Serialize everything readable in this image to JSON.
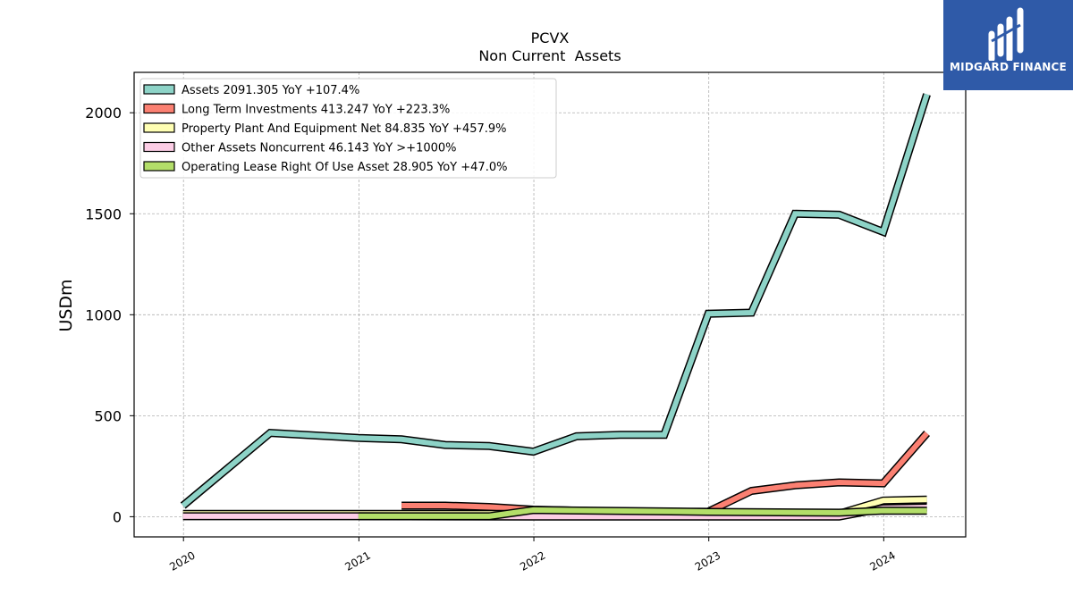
{
  "brand": {
    "name": "MIDGARD FINANCE",
    "bg_color": "#2f5aa8"
  },
  "chart_data": {
    "type": "line",
    "title": "PCVX",
    "subtitle": "Non Current  Assets",
    "ylabel": "USDm",
    "xlabel": "",
    "x_ticks": [
      "2020",
      "2021",
      "2022",
      "2023",
      "2024"
    ],
    "y_ticks": [
      0,
      500,
      1000,
      1500,
      2000
    ],
    "ylim": [
      -100,
      2200
    ],
    "xlim": [
      "2019-09-20",
      "2024-06-20"
    ],
    "grid": true,
    "legend_position": "top-left",
    "series": [
      {
        "name": "Assets",
        "legend": "Assets  2091.305 YoY +107.4%",
        "color": "#8dd3c7",
        "points": [
          [
            "2019-12-31",
            55
          ],
          [
            "2020-06-30",
            415
          ],
          [
            "2020-12-31",
            390
          ],
          [
            "2021-03-31",
            383
          ],
          [
            "2021-06-30",
            355
          ],
          [
            "2021-09-30",
            350
          ],
          [
            "2021-12-31",
            322
          ],
          [
            "2022-03-31",
            398
          ],
          [
            "2022-06-30",
            405
          ],
          [
            "2022-09-30",
            405
          ],
          [
            "2022-12-31",
            1005
          ],
          [
            "2023-03-31",
            1010
          ],
          [
            "2023-06-30",
            1500
          ],
          [
            "2023-09-30",
            1495
          ],
          [
            "2023-12-31",
            1410
          ],
          [
            "2024-03-31",
            2091
          ]
        ]
      },
      {
        "name": "Long Term Investments",
        "legend": "Long Term Investments  413.247 YoY +223.3%",
        "color": "#fb8072",
        "points": [
          [
            "2021-03-31",
            55
          ],
          [
            "2021-06-30",
            55
          ],
          [
            "2021-09-30",
            48
          ],
          [
            "2021-12-31",
            35
          ],
          [
            "2022-03-31",
            30
          ],
          [
            "2022-06-30",
            25
          ],
          [
            "2022-09-30",
            22
          ],
          [
            "2022-12-31",
            25
          ],
          [
            "2023-03-31",
            128
          ],
          [
            "2023-06-30",
            155
          ],
          [
            "2023-09-30",
            170
          ],
          [
            "2023-12-31",
            165
          ],
          [
            "2024-03-31",
            413
          ]
        ]
      },
      {
        "name": "Property Plant And Equipment Net",
        "legend": "Property Plant And Equipment Net  84.835 YoY +457.9%",
        "color": "#ffffb3",
        "points": [
          [
            "2019-12-31",
            14
          ],
          [
            "2020-12-31",
            14
          ],
          [
            "2021-12-31",
            14
          ],
          [
            "2022-12-31",
            14
          ],
          [
            "2023-09-30",
            15
          ],
          [
            "2023-12-31",
            80
          ],
          [
            "2024-03-31",
            85
          ]
        ]
      },
      {
        "name": "Other Assets Noncurrent",
        "legend": "Other Assets Noncurrent  46.143 YoY >+1000%",
        "color": "#fccde5",
        "points": [
          [
            "2019-12-31",
            2
          ],
          [
            "2020-12-31",
            2
          ],
          [
            "2021-12-31",
            1
          ],
          [
            "2022-12-31",
            1
          ],
          [
            "2023-09-30",
            1
          ],
          [
            "2023-12-31",
            42
          ],
          [
            "2024-03-31",
            46
          ]
        ]
      },
      {
        "name": "Operating Lease Right Of Use Asset",
        "legend": "Operating Lease Right Of Use Asset  28.905 YoY +47.0%",
        "color": "#b3de69",
        "points": [
          [
            "2020-12-31",
            2
          ],
          [
            "2021-09-30",
            2
          ],
          [
            "2021-12-31",
            33
          ],
          [
            "2022-12-31",
            24
          ],
          [
            "2023-09-30",
            20
          ],
          [
            "2023-12-31",
            30
          ],
          [
            "2024-03-31",
            29
          ]
        ]
      }
    ]
  }
}
